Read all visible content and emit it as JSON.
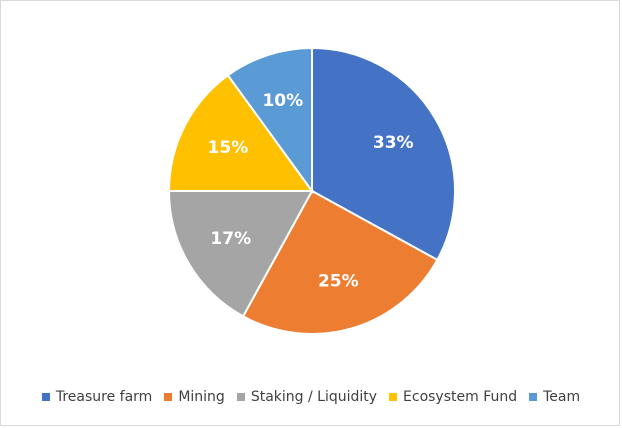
{
  "chart_data": {
    "type": "pie",
    "title": "",
    "legend_position": "bottom",
    "slices": [
      {
        "label": "Treasure farm",
        "value": 33,
        "value_label": "33%",
        "color": "#4472c4"
      },
      {
        "label": "Mining",
        "value": 25,
        "value_label": "25%",
        "color": "#ed7d31"
      },
      {
        "label": "Staking / Liquidity",
        "value": 17,
        "value_label": "17%",
        "color": "#a5a5a5"
      },
      {
        "label": "Ecosystem Fund",
        "value": 15,
        "value_label": "15%",
        "color": "#ffc000"
      },
      {
        "label": "Team",
        "value": 10,
        "value_label": "10%",
        "color": "#5b9bd5"
      }
    ]
  }
}
